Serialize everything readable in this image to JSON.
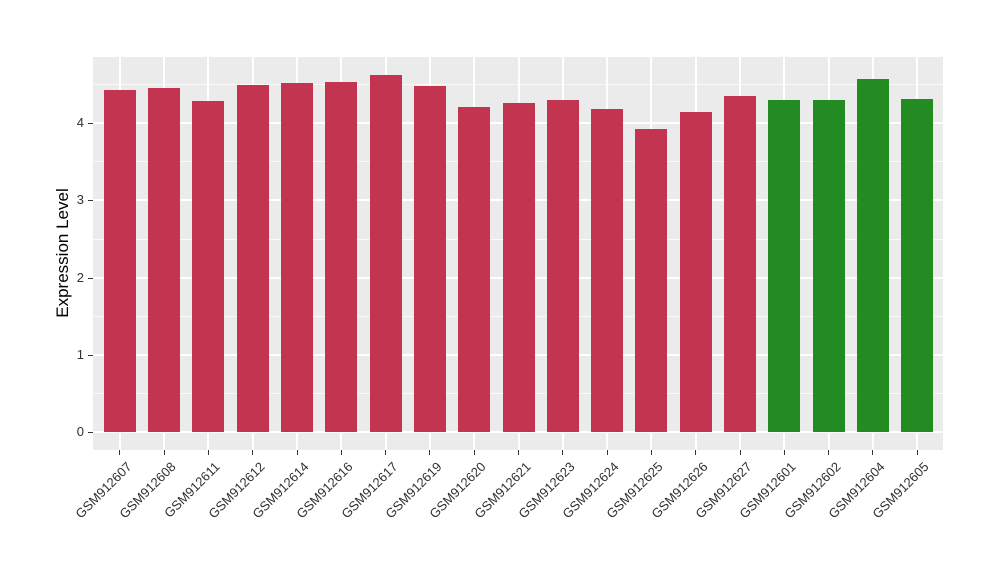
{
  "chart_data": {
    "type": "bar",
    "title": "",
    "ylabel": "Expression Level",
    "xlabel": "",
    "categories": [
      "GSM912607",
      "GSM912608",
      "GSM912611",
      "GSM912612",
      "GSM912614",
      "GSM912616",
      "GSM912617",
      "GSM912619",
      "GSM912620",
      "GSM912621",
      "GSM912623",
      "GSM912624",
      "GSM912625",
      "GSM912626",
      "GSM912627",
      "GSM912601",
      "GSM912602",
      "GSM912604",
      "GSM912605"
    ],
    "values": [
      4.43,
      4.46,
      4.29,
      4.5,
      4.52,
      4.54,
      4.62,
      4.48,
      4.21,
      4.26,
      4.3,
      4.18,
      3.92,
      4.14,
      4.35,
      4.3,
      4.3,
      4.57,
      4.31
    ],
    "bar_colors": [
      "#C33450",
      "#C33450",
      "#C33450",
      "#C33450",
      "#C33450",
      "#C33450",
      "#C33450",
      "#C33450",
      "#C33450",
      "#C33450",
      "#C33450",
      "#C33450",
      "#C33450",
      "#C33450",
      "#C33450",
      "#228B22",
      "#228B22",
      "#228B22",
      "#228B22"
    ],
    "group_palette": {
      "red_group": "#C33450",
      "green_group": "#228B22"
    },
    "yticks": [
      0,
      1,
      2,
      3,
      4
    ],
    "minor_gridlines": [
      0.5,
      1.5,
      2.5,
      3.5,
      4.5
    ],
    "ylim": [
      0,
      4.86
    ],
    "grid": true,
    "legend_position": "none",
    "panel_background": "#EBEBEB",
    "gridline_color": "#FFFFFF",
    "axis_text_color": "#303030"
  }
}
